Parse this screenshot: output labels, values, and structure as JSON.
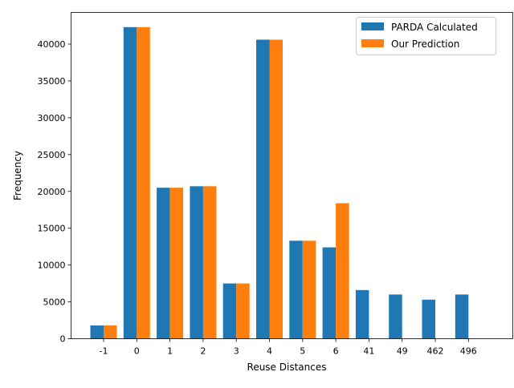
{
  "chart_data": {
    "type": "bar",
    "title": "",
    "xlabel": "Reuse Distances",
    "ylabel": "Frequency",
    "categories": [
      "-1",
      "0",
      "1",
      "2",
      "3",
      "4",
      "5",
      "6",
      "41",
      "49",
      "462",
      "496"
    ],
    "series": [
      {
        "name": "PARDA Calculated",
        "color": "#1f77b4",
        "values": [
          1800,
          42300,
          20500,
          20700,
          7500,
          40600,
          13300,
          12400,
          6600,
          6000,
          5300,
          6000
        ]
      },
      {
        "name": "Our Prediction",
        "color": "#ff7f0e",
        "values": [
          1800,
          42300,
          20500,
          20700,
          7500,
          40600,
          13300,
          18400,
          0,
          0,
          0,
          0
        ]
      }
    ],
    "ylim": [
      0,
      44300
    ],
    "yticks": [
      0,
      5000,
      10000,
      15000,
      20000,
      25000,
      30000,
      35000,
      40000
    ],
    "ytick_labels": [
      "0",
      "5000",
      "10000",
      "15000",
      "20000",
      "25000",
      "30000",
      "35000",
      "40000"
    ],
    "grid": false,
    "legend": "top-right"
  }
}
